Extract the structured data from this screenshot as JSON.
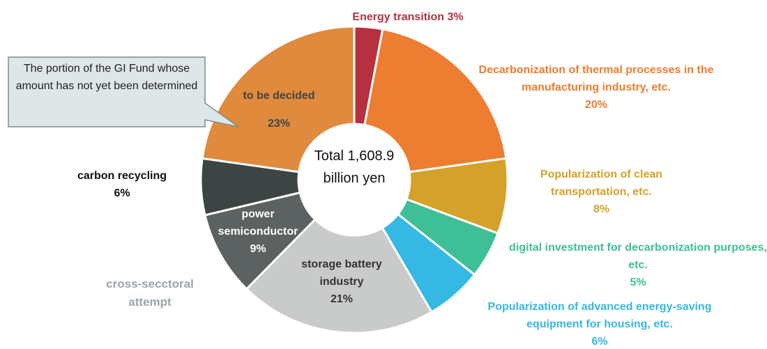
{
  "chart_data": {
    "type": "donut",
    "categories": [
      "Energy transition",
      "Decarbonization of thermal processes in the manufacturing industry, etc.",
      "Popularization of clean transportation, etc.",
      "digital investment for decarbonization purposes, etc.",
      "Popularization of advanced energy-saving equipment for housing, etc.",
      "storage battery industry",
      "power semiconductor",
      "carbon recycling",
      "to be decided"
    ],
    "values": [
      3,
      20,
      8,
      5,
      6,
      21,
      9,
      6,
      23
    ],
    "value_labels": [
      "3%",
      "20%",
      "8%",
      "5%",
      "6%",
      "21%",
      "9%",
      "6%",
      "23%"
    ],
    "colors": [
      "#b7303f",
      "#ed7d31",
      "#d4a12a",
      "#3fbf98",
      "#36b8e4",
      "#c9cbcb",
      "#5c6262",
      "#3d4444",
      "#df8a3d"
    ],
    "center_text": "Total 1,608.9 billion yen",
    "annotations": [
      "The portion of the GI Fund whose amount has not yet been determined",
      "cross-secctoral attempt"
    ]
  }
}
